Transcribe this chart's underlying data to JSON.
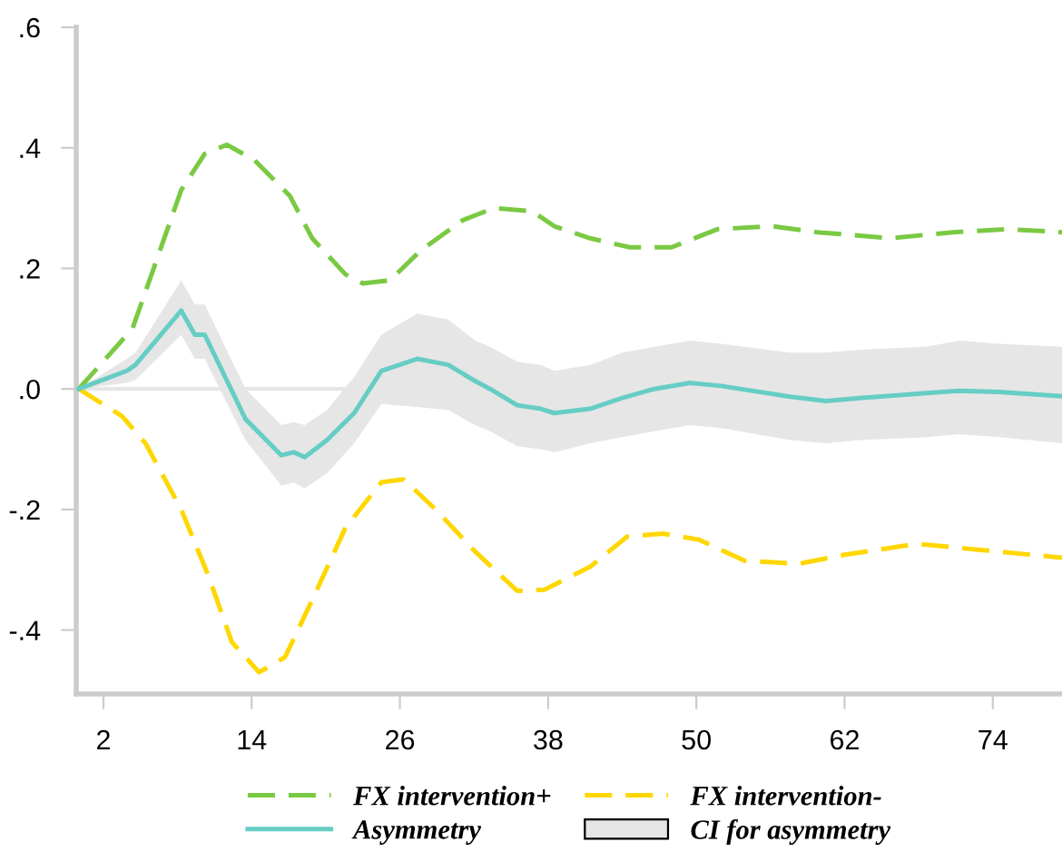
{
  "chart_data": {
    "type": "line",
    "xlim": [
      -0.2,
      79.6
    ],
    "ylim": [
      -0.506,
      0.6
    ],
    "xticks": [
      2,
      14,
      26,
      38,
      50,
      62,
      74
    ],
    "yticks": [
      {
        "value": 0.6,
        "label": ".6"
      },
      {
        "value": 0.4,
        "label": ".4"
      },
      {
        "value": 0.2,
        "label": ".2"
      },
      {
        "value": 0,
        "label": ".0"
      },
      {
        "value": -0.2,
        "label": "-.2"
      },
      {
        "value": -0.4,
        "label": "-.4"
      }
    ],
    "grid": false,
    "legend": "bottom",
    "annotations": [
      "CI for asymmetry"
    ],
    "ref_lines": [
      {
        "axis": "y",
        "value": 0,
        "color": "#e6e6e6"
      }
    ],
    "series": [
      {
        "name": "FX intervention+",
        "color": "#7ac943",
        "line_style": "dashed",
        "x": [
          0,
          4.35,
          8.3,
          10.2,
          12,
          14.2,
          17.1,
          18.9,
          21.6,
          23,
          25.2,
          27.7,
          31.1,
          33.6,
          36.7,
          38.5,
          41.4,
          44.6,
          48,
          51.7,
          56.1,
          59.8,
          65.7,
          70.8,
          75.2,
          79.6
        ],
        "values": [
          0,
          0.1,
          0.33,
          0.39,
          0.405,
          0.38,
          0.32,
          0.25,
          0.19,
          0.175,
          0.18,
          0.23,
          0.28,
          0.3,
          0.295,
          0.27,
          0.25,
          0.235,
          0.235,
          0.265,
          0.27,
          0.26,
          0.25,
          0.26,
          0.265,
          0.26
        ]
      },
      {
        "name": "FX intervention-",
        "color": "#ffd700",
        "line_style": "dashed",
        "x": [
          0,
          3.5,
          5.4,
          8.3,
          10.5,
          12.4,
          14.6,
          16.7,
          18.9,
          21.6,
          24.5,
          26.3,
          28.9,
          32.1,
          35.5,
          37.7,
          41.4,
          44.4,
          47.3,
          50.2,
          53.9,
          58.3,
          62,
          67.9,
          73,
          79.6
        ],
        "values": [
          0,
          -0.045,
          -0.09,
          -0.2,
          -0.31,
          -0.42,
          -0.47,
          -0.445,
          -0.35,
          -0.23,
          -0.155,
          -0.15,
          -0.2,
          -0.27,
          -0.335,
          -0.333,
          -0.295,
          -0.245,
          -0.24,
          -0.25,
          -0.285,
          -0.29,
          -0.275,
          -0.257,
          -0.267,
          -0.28
        ]
      },
      {
        "name": "Asymmetry",
        "type": "line",
        "color": "#66cdc4",
        "line_style": "solid",
        "x": [
          0,
          3.9,
          4.6,
          8.3,
          9.4,
          10.2,
          13.5,
          16.4,
          17.4,
          18.3,
          20.1,
          22.3,
          24.5,
          27.4,
          29.9,
          32.1,
          33.3,
          35.5,
          37.4,
          38.5,
          41.4,
          44,
          46.6,
          49.5,
          52,
          57.6,
          60.5,
          63.2,
          68.6,
          71.3,
          74.5,
          79.6
        ],
        "values": [
          0,
          0.03,
          0.04,
          0.13,
          0.09,
          0.09,
          -0.05,
          -0.11,
          -0.105,
          -0.113,
          -0.085,
          -0.04,
          0.03,
          0.05,
          0.04,
          0.013,
          0.0,
          -0.027,
          -0.033,
          -0.04,
          -0.033,
          -0.015,
          0.0,
          0.01,
          0.005,
          -0.013,
          -0.02,
          -0.015,
          -0.007,
          -0.003,
          -0.005,
          -0.012
        ],
        "upper": [
          0,
          0.05,
          0.06,
          0.18,
          0.14,
          0.14,
          0.0,
          -0.06,
          -0.055,
          -0.06,
          -0.035,
          0.02,
          0.09,
          0.125,
          0.115,
          0.08,
          0.07,
          0.045,
          0.04,
          0.03,
          0.04,
          0.06,
          0.07,
          0.08,
          0.075,
          0.06,
          0.06,
          0.065,
          0.07,
          0.08,
          0.075,
          0.07
        ],
        "lower": [
          0,
          0.01,
          0.015,
          0.09,
          0.05,
          0.05,
          -0.085,
          -0.16,
          -0.155,
          -0.165,
          -0.14,
          -0.09,
          -0.025,
          -0.03,
          -0.035,
          -0.06,
          -0.07,
          -0.095,
          -0.1,
          -0.105,
          -0.09,
          -0.08,
          -0.07,
          -0.06,
          -0.065,
          -0.085,
          -0.09,
          -0.085,
          -0.08,
          -0.075,
          -0.08,
          -0.09
        ]
      }
    ]
  }
}
